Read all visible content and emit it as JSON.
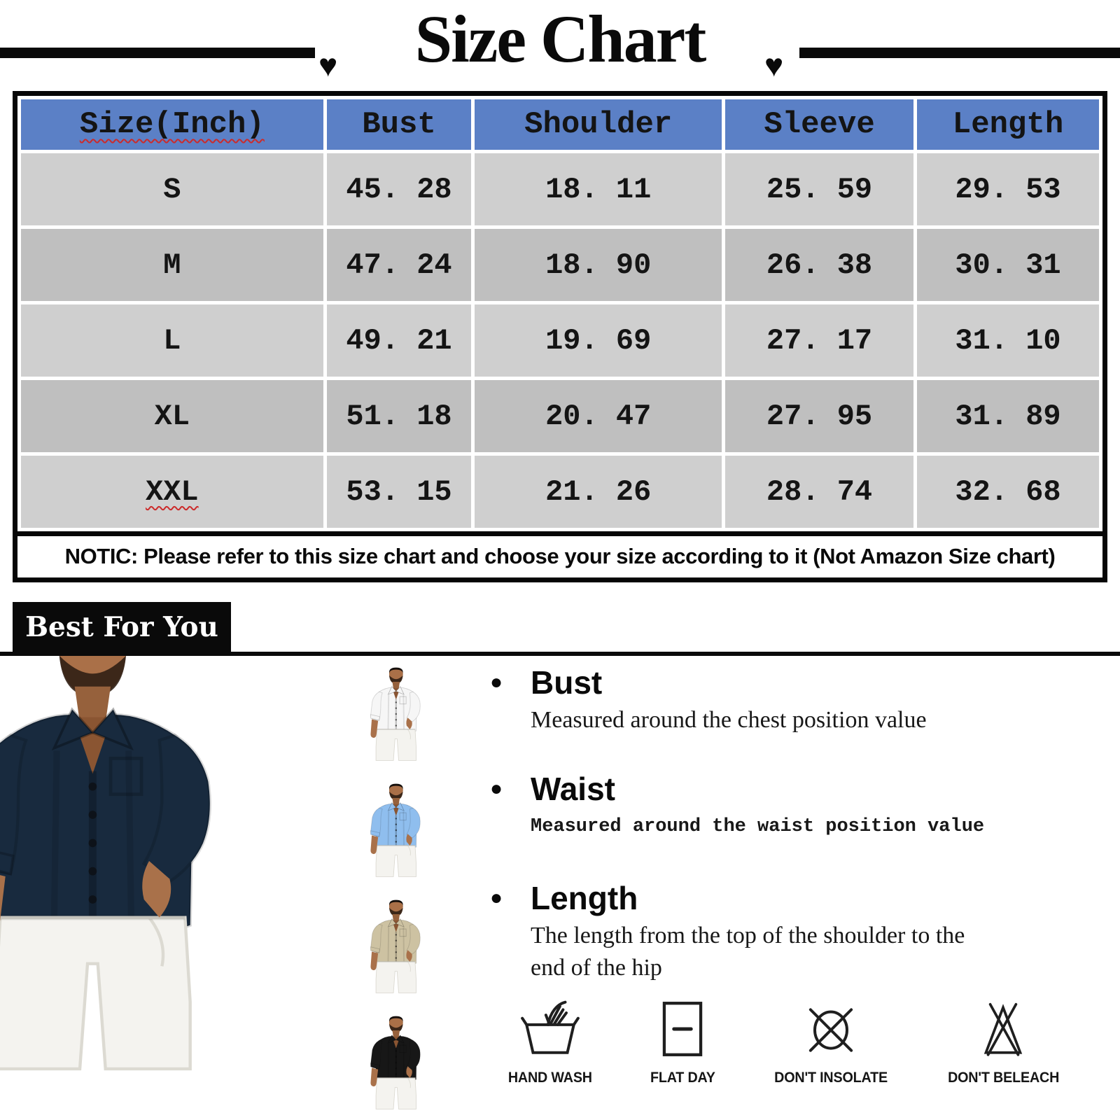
{
  "title": {
    "text": "Size Chart",
    "left_heart": "♥",
    "right_heart": "♥"
  },
  "size_table": {
    "headers": [
      "Size(Inch)",
      "Bust",
      "Shoulder",
      "Sleeve",
      "Length"
    ],
    "rows": [
      [
        "S",
        "45. 28",
        "18. 11",
        "25. 59",
        "29. 53"
      ],
      [
        "M",
        "47. 24",
        "18. 90",
        "26. 38",
        "30. 31"
      ],
      [
        "L",
        "49. 21",
        "19. 69",
        "27. 17",
        "31. 10"
      ],
      [
        "XL",
        "51. 18",
        "20. 47",
        "27. 95",
        "31. 89"
      ],
      [
        "XXL",
        "53. 15",
        "21. 26",
        "28. 74",
        "32. 68"
      ]
    ],
    "notice": "NOTIC: Please refer to this size chart and choose your size according to it (Not Amazon Size chart)"
  },
  "banner": {
    "label": "Best For You"
  },
  "photos": {
    "main": {
      "name": "navy-shirt-model",
      "shirt_color": "#182a3e"
    },
    "variants": [
      {
        "name": "white-shirt",
        "shirt_color": "#f6f6f6"
      },
      {
        "name": "light-blue-shirt",
        "shirt_color": "#8fbeee"
      },
      {
        "name": "khaki-shirt",
        "shirt_color": "#cdc2a2"
      },
      {
        "name": "black-shirt",
        "shirt_color": "#171717"
      }
    ]
  },
  "measure_guide": [
    {
      "term": "Bust",
      "desc": "Measured around the chest position value",
      "style": "serif"
    },
    {
      "term": "Waist",
      "desc": "Measured around the waist position value",
      "style": "mono"
    },
    {
      "term": "Length",
      "desc": "The length from the top of the shoulder to the end of the hip",
      "style": "serif"
    }
  ],
  "care_icons": [
    {
      "icon": "hand-wash",
      "label": "HAND WASH"
    },
    {
      "icon": "flat-day",
      "label": "FLAT DAY"
    },
    {
      "icon": "dont-insolate",
      "label": "DON'T INSOLATE"
    },
    {
      "icon": "dont-beleach",
      "label": "DON'T BELEACH"
    }
  ],
  "colors": {
    "header_bg": "#5b80c6",
    "row_light": "#cfcfcf",
    "row_dark": "#bfbfbf",
    "squiggle": "#cc2b2b"
  }
}
